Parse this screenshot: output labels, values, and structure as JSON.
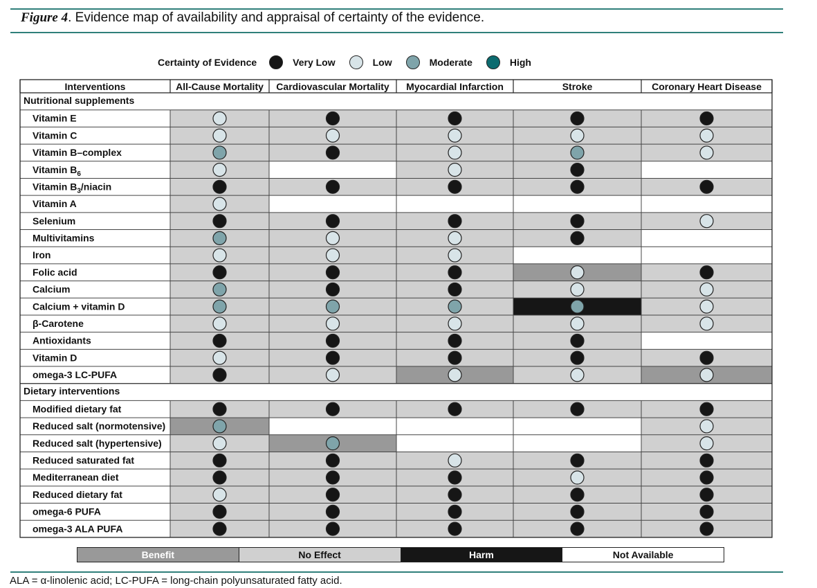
{
  "figure": {
    "label": "Figure 4",
    "caption": ". Evidence map of availability and appraisal of certainty of the evidence."
  },
  "colors": {
    "rule": "#2f7f7a",
    "benefit": "#999999",
    "no_effect": "#d0d0d0",
    "harm": "#161616",
    "not_available": "#ffffff",
    "very_low": "#161616",
    "low": "#d8e4e8",
    "moderate": "#7fa4aa",
    "high": "#0c6b6f"
  },
  "certainty_legend": {
    "label": "Certainty of Evidence",
    "levels": [
      {
        "key": "VL",
        "name": "Very Low"
      },
      {
        "key": "L",
        "name": "Low"
      },
      {
        "key": "M",
        "name": "Moderate"
      },
      {
        "key": "H",
        "name": "High"
      }
    ]
  },
  "effect_legend": [
    "Benefit",
    "No Effect",
    "Harm",
    "Not Available"
  ],
  "footnote": "ALA = α-linolenic acid; LC-PUFA = long-chain polyunsaturated fatty acid.",
  "chart_data": {
    "type": "table",
    "row_header": "Interventions",
    "columns": [
      "All-Cause Mortality",
      "Cardiovascular Mortality",
      "Myocardial Infarction",
      "Stroke",
      "Coronary Heart Disease"
    ],
    "effect_codes": {
      "B": "Benefit",
      "N": "No Effect",
      "X": "Harm",
      "NA": "Not Available"
    },
    "certainty_codes": {
      "VL": "Very Low",
      "L": "Low",
      "M": "Moderate",
      "H": "High"
    },
    "groups": [
      {
        "name": "Nutritional supplements",
        "rows": [
          {
            "name": "Vitamin E",
            "cells": [
              [
                "N",
                "L"
              ],
              [
                "N",
                "VL"
              ],
              [
                "N",
                "VL"
              ],
              [
                "N",
                "VL"
              ],
              [
                "N",
                "VL"
              ]
            ]
          },
          {
            "name": "Vitamin C",
            "cells": [
              [
                "N",
                "L"
              ],
              [
                "N",
                "L"
              ],
              [
                "N",
                "L"
              ],
              [
                "N",
                "L"
              ],
              [
                "N",
                "L"
              ]
            ]
          },
          {
            "name": "Vitamin B–complex",
            "cells": [
              [
                "N",
                "M"
              ],
              [
                "N",
                "VL"
              ],
              [
                "N",
                "L"
              ],
              [
                "N",
                "M"
              ],
              [
                "N",
                "L"
              ]
            ]
          },
          {
            "name": "Vitamin B",
            "sub": "6",
            "cells": [
              [
                "N",
                "L"
              ],
              [
                "NA",
                null
              ],
              [
                "N",
                "L"
              ],
              [
                "N",
                "VL"
              ],
              [
                "NA",
                null
              ]
            ]
          },
          {
            "name": "Vitamin B",
            "sub": "3",
            "suffix": "/niacin",
            "cells": [
              [
                "N",
                "VL"
              ],
              [
                "N",
                "VL"
              ],
              [
                "N",
                "VL"
              ],
              [
                "N",
                "VL"
              ],
              [
                "N",
                "VL"
              ]
            ]
          },
          {
            "name": "Vitamin A",
            "cells": [
              [
                "N",
                "L"
              ],
              [
                "NA",
                null
              ],
              [
                "NA",
                null
              ],
              [
                "NA",
                null
              ],
              [
                "NA",
                null
              ]
            ]
          },
          {
            "name": "Selenium",
            "cells": [
              [
                "N",
                "VL"
              ],
              [
                "N",
                "VL"
              ],
              [
                "N",
                "VL"
              ],
              [
                "N",
                "VL"
              ],
              [
                "N",
                "L"
              ]
            ]
          },
          {
            "name": "Multivitamins",
            "cells": [
              [
                "N",
                "M"
              ],
              [
                "N",
                "L"
              ],
              [
                "N",
                "L"
              ],
              [
                "N",
                "VL"
              ],
              [
                "NA",
                null
              ]
            ]
          },
          {
            "name": "Iron",
            "cells": [
              [
                "N",
                "L"
              ],
              [
                "N",
                "L"
              ],
              [
                "N",
                "L"
              ],
              [
                "NA",
                null
              ],
              [
                "NA",
                null
              ]
            ]
          },
          {
            "name": "Folic acid",
            "cells": [
              [
                "N",
                "VL"
              ],
              [
                "N",
                "VL"
              ],
              [
                "N",
                "VL"
              ],
              [
                "B",
                "L"
              ],
              [
                "N",
                "VL"
              ]
            ]
          },
          {
            "name": "Calcium",
            "cells": [
              [
                "N",
                "M"
              ],
              [
                "N",
                "VL"
              ],
              [
                "N",
                "VL"
              ],
              [
                "N",
                "L"
              ],
              [
                "N",
                "L"
              ]
            ]
          },
          {
            "name": "Calcium + vitamin D",
            "cells": [
              [
                "N",
                "M"
              ],
              [
                "N",
                "M"
              ],
              [
                "N",
                "M"
              ],
              [
                "X",
                "M"
              ],
              [
                "N",
                "L"
              ]
            ]
          },
          {
            "name": "β-Carotene",
            "cells": [
              [
                "N",
                "L"
              ],
              [
                "N",
                "L"
              ],
              [
                "N",
                "L"
              ],
              [
                "N",
                "L"
              ],
              [
                "N",
                "L"
              ]
            ]
          },
          {
            "name": "Antioxidants",
            "cells": [
              [
                "N",
                "VL"
              ],
              [
                "N",
                "VL"
              ],
              [
                "N",
                "VL"
              ],
              [
                "N",
                "VL"
              ],
              [
                "NA",
                null
              ]
            ]
          },
          {
            "name": "Vitamin D",
            "cells": [
              [
                "N",
                "L"
              ],
              [
                "N",
                "VL"
              ],
              [
                "N",
                "VL"
              ],
              [
                "N",
                "VL"
              ],
              [
                "N",
                "VL"
              ]
            ]
          },
          {
            "name": "omega-3 LC-PUFA",
            "cells": [
              [
                "N",
                "VL"
              ],
              [
                "N",
                "L"
              ],
              [
                "B",
                "L"
              ],
              [
                "N",
                "L"
              ],
              [
                "B",
                "L"
              ]
            ]
          }
        ]
      },
      {
        "name": "Dietary interventions",
        "rows": [
          {
            "name": "Modified dietary fat",
            "cells": [
              [
                "N",
                "VL"
              ],
              [
                "N",
                "VL"
              ],
              [
                "N",
                "VL"
              ],
              [
                "N",
                "VL"
              ],
              [
                "N",
                "VL"
              ]
            ]
          },
          {
            "name": "Reduced salt (normotensive)",
            "cells": [
              [
                "B",
                "M"
              ],
              [
                "NA",
                null
              ],
              [
                "NA",
                null
              ],
              [
                "NA",
                null
              ],
              [
                "N",
                "L"
              ]
            ]
          },
          {
            "name": "Reduced salt (hypertensive)",
            "cells": [
              [
                "N",
                "L"
              ],
              [
                "B",
                "M"
              ],
              [
                "NA",
                null
              ],
              [
                "NA",
                null
              ],
              [
                "N",
                "L"
              ]
            ]
          },
          {
            "name": "Reduced saturated fat",
            "cells": [
              [
                "N",
                "VL"
              ],
              [
                "N",
                "VL"
              ],
              [
                "N",
                "L"
              ],
              [
                "N",
                "VL"
              ],
              [
                "N",
                "VL"
              ]
            ]
          },
          {
            "name": "Mediterranean diet",
            "cells": [
              [
                "N",
                "VL"
              ],
              [
                "N",
                "VL"
              ],
              [
                "N",
                "VL"
              ],
              [
                "N",
                "L"
              ],
              [
                "N",
                "VL"
              ]
            ]
          },
          {
            "name": "Reduced dietary fat",
            "cells": [
              [
                "N",
                "L"
              ],
              [
                "N",
                "VL"
              ],
              [
                "N",
                "VL"
              ],
              [
                "N",
                "VL"
              ],
              [
                "N",
                "VL"
              ]
            ]
          },
          {
            "name": "omega-6 PUFA",
            "cells": [
              [
                "N",
                "VL"
              ],
              [
                "N",
                "VL"
              ],
              [
                "N",
                "VL"
              ],
              [
                "N",
                "VL"
              ],
              [
                "N",
                "VL"
              ]
            ]
          },
          {
            "name": "omega-3 ALA PUFA",
            "cells": [
              [
                "N",
                "VL"
              ],
              [
                "N",
                "VL"
              ],
              [
                "N",
                "VL"
              ],
              [
                "N",
                "VL"
              ],
              [
                "N",
                "VL"
              ]
            ]
          }
        ]
      }
    ]
  }
}
